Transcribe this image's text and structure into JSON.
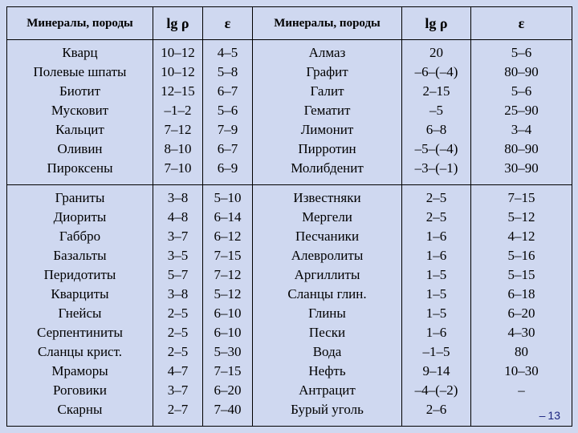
{
  "table": {
    "headers": [
      "Минералы, породы",
      "lg ρ",
      "ε",
      "Минералы, породы",
      "lg ρ",
      "ε"
    ],
    "group1": {
      "left": {
        "names": [
          "Кварц",
          "Полевые шпаты",
          "Биотит",
          "Мусковит",
          "Кальцит",
          "Оливин",
          "Пироксены"
        ],
        "lg": [
          "10–12",
          "10–12",
          "12–15",
          "–1–2",
          "7–12",
          "8–10",
          "7–10"
        ],
        "eps": [
          "4–5",
          "5–8",
          "6–7",
          "5–6",
          "7–9",
          "6–7",
          "6–9"
        ]
      },
      "right": {
        "names": [
          "Алмаз",
          "Графит",
          "Галит",
          "Гематит",
          "Лимонит",
          "Пирротин",
          "Молибденит"
        ],
        "lg": [
          "20",
          "–6–(–4)",
          "2–15",
          "–5",
          "6–8",
          "–5–(–4)",
          "–3–(–1)"
        ],
        "eps": [
          "5–6",
          "80–90",
          "5–6",
          "25–90",
          "3–4",
          "80–90",
          "30–90"
        ]
      }
    },
    "group2": {
      "left": {
        "names": [
          "Граниты",
          "Диориты",
          "Габбро",
          "Базальты",
          "Перидотиты",
          "Кварциты",
          "Гнейсы",
          "Серпентиниты",
          "Сланцы крист.",
          "Мраморы",
          "Роговики",
          "Скарны"
        ],
        "lg": [
          "3–8",
          "4–8",
          "3–7",
          "3–5",
          "5–7",
          "3–8",
          "2–5",
          "2–5",
          "2–5",
          "4–7",
          "3–7",
          "2–7"
        ],
        "eps": [
          "5–10",
          "6–14",
          "6–12",
          "7–15",
          "7–12",
          "5–12",
          "6–10",
          "6–10",
          "5–30",
          "7–15",
          "6–20",
          "7–40"
        ]
      },
      "right": {
        "names": [
          "Известняки",
          "Мергели",
          "Песчаники",
          "Алевролиты",
          "Аргиллиты",
          "Сланцы глин.",
          "Глины",
          "Пески",
          "Вода",
          "Нефть",
          "Антрацит",
          "Бурый уголь"
        ],
        "lg": [
          "2–5",
          "2–5",
          "1–6",
          "1–6",
          "1–5",
          "1–5",
          "1–5",
          "1–6",
          "–1–5",
          "9–14",
          "–4–(–2)",
          "2–6"
        ],
        "eps": [
          "7–15",
          "5–12",
          "4–12",
          "5–16",
          "5–15",
          "6–18",
          "6–20",
          "4–30",
          "80",
          "10–30",
          "–",
          ""
        ]
      }
    }
  },
  "page_number": "13"
}
